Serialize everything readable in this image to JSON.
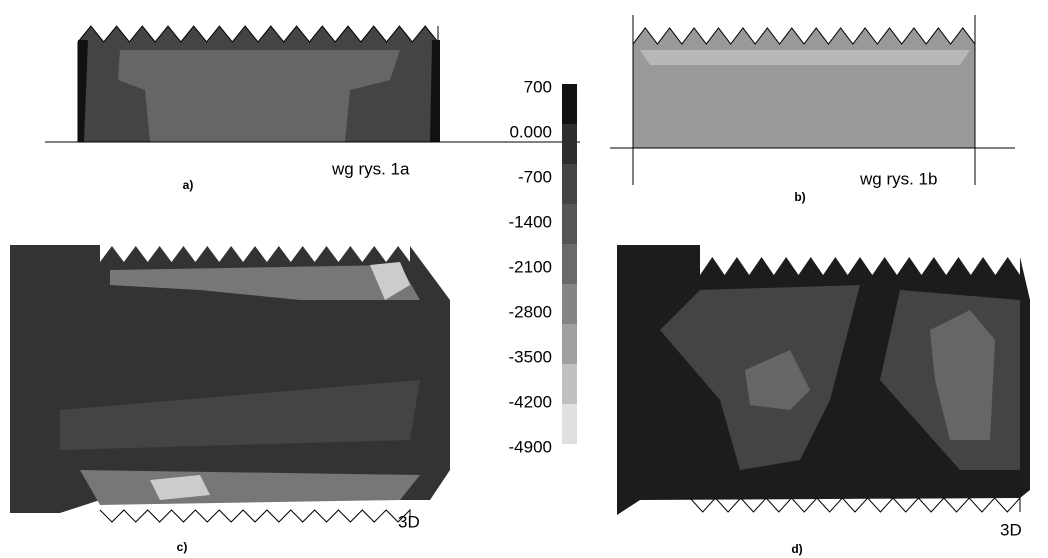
{
  "panels": [
    {
      "label": "a)",
      "caption": "wg rys. 1a"
    },
    {
      "label": "b)",
      "caption": "wg rys. 1b"
    },
    {
      "label": "c)",
      "caption": "3D"
    },
    {
      "label": "d)",
      "caption": "3D"
    }
  ],
  "colorbar": {
    "labels": [
      "700",
      "0.000",
      "-700",
      "-1400",
      "-2100",
      "-2800",
      "-3500",
      "-4200",
      "-4900"
    ],
    "colors": [
      "#111111",
      "#2e2e2e",
      "#444444",
      "#555555",
      "#6a6a6a",
      "#858585",
      "#a0a0a0",
      "#c0c0c0",
      "#e0e0e0"
    ]
  }
}
